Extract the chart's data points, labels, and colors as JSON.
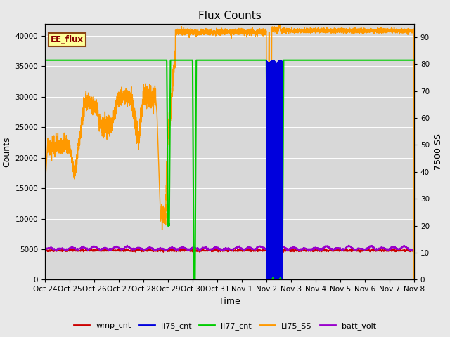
{
  "title": "Flux Counts",
  "xlabel": "Time",
  "ylabel_left": "Counts",
  "ylabel_right": "7500 SS",
  "ylim_left": [
    0,
    42000
  ],
  "ylim_right": [
    0,
    95
  ],
  "fig_facecolor": "#e8e8e8",
  "plot_facecolor": "#d8d8d8",
  "annotation_text": "EE_flux",
  "annotation_bg": "#ffff99",
  "annotation_border": "#8b4513",
  "tick_labels": [
    "Oct 24",
    "Oct 25",
    "Oct 26",
    "Oct 27",
    "Oct 28",
    "Oct 29",
    "Oct 30",
    "Oct 31",
    "Nov 1",
    "Nov 2",
    "Nov 3",
    "Nov 4",
    "Nov 5",
    "Nov 6",
    "Nov 7",
    "Nov 8"
  ],
  "tick_positions": [
    0,
    1,
    2,
    3,
    4,
    5,
    6,
    7,
    8,
    9,
    10,
    11,
    12,
    13,
    14,
    15
  ],
  "colors": {
    "wmp_cnt": "#cc0000",
    "li75_cnt": "#0000dd",
    "li77_cnt": "#00cc00",
    "Li75_SS": "#ff9900",
    "batt_volt": "#9900cc"
  },
  "grid_color": "#ffffff",
  "title_fontsize": 11,
  "label_fontsize": 9,
  "tick_fontsize": 7.5,
  "legend_fontsize": 8
}
